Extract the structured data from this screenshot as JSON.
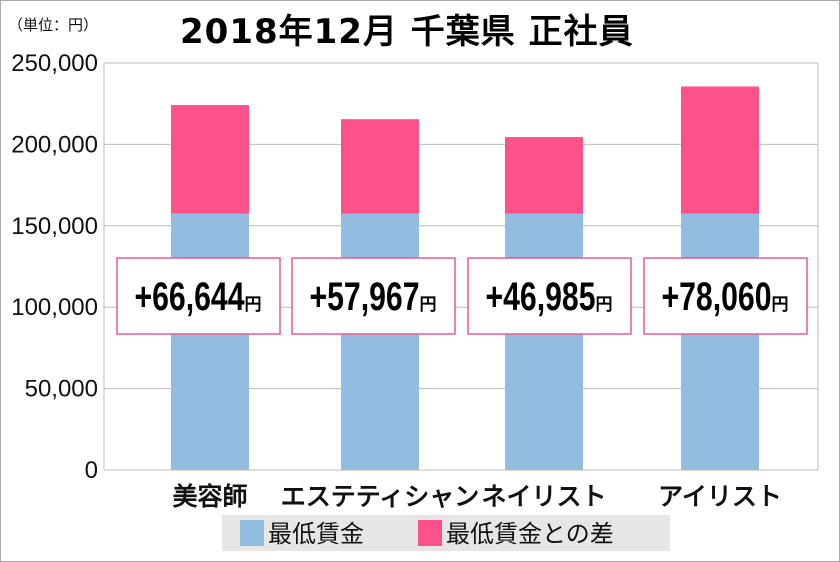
{
  "chart_data": {
    "type": "bar",
    "stacked": true,
    "title": "2018年12月 千葉県 正社員",
    "unit_label": "（単位：円）",
    "categories": [
      "美容師",
      "エステティシャン",
      "ネイリスト",
      "アイリスト"
    ],
    "series": [
      {
        "name": "最低賃金",
        "values": [
          157520,
          157520,
          157520,
          157520
        ],
        "color": "#92bde0"
      },
      {
        "name": "最低賃金との差",
        "values": [
          66644,
          57967,
          46985,
          78060
        ],
        "color": "#fd5289"
      }
    ],
    "data_labels": [
      "+66,644",
      "+57,967",
      "+46,985",
      "+78,060"
    ],
    "data_label_unit": "円",
    "yticks": [
      "0",
      "50,000",
      "100,000",
      "150,000",
      "200,000",
      "250,000"
    ],
    "ylim": [
      0,
      250000
    ],
    "grid": true,
    "legend_position": "bottom"
  }
}
